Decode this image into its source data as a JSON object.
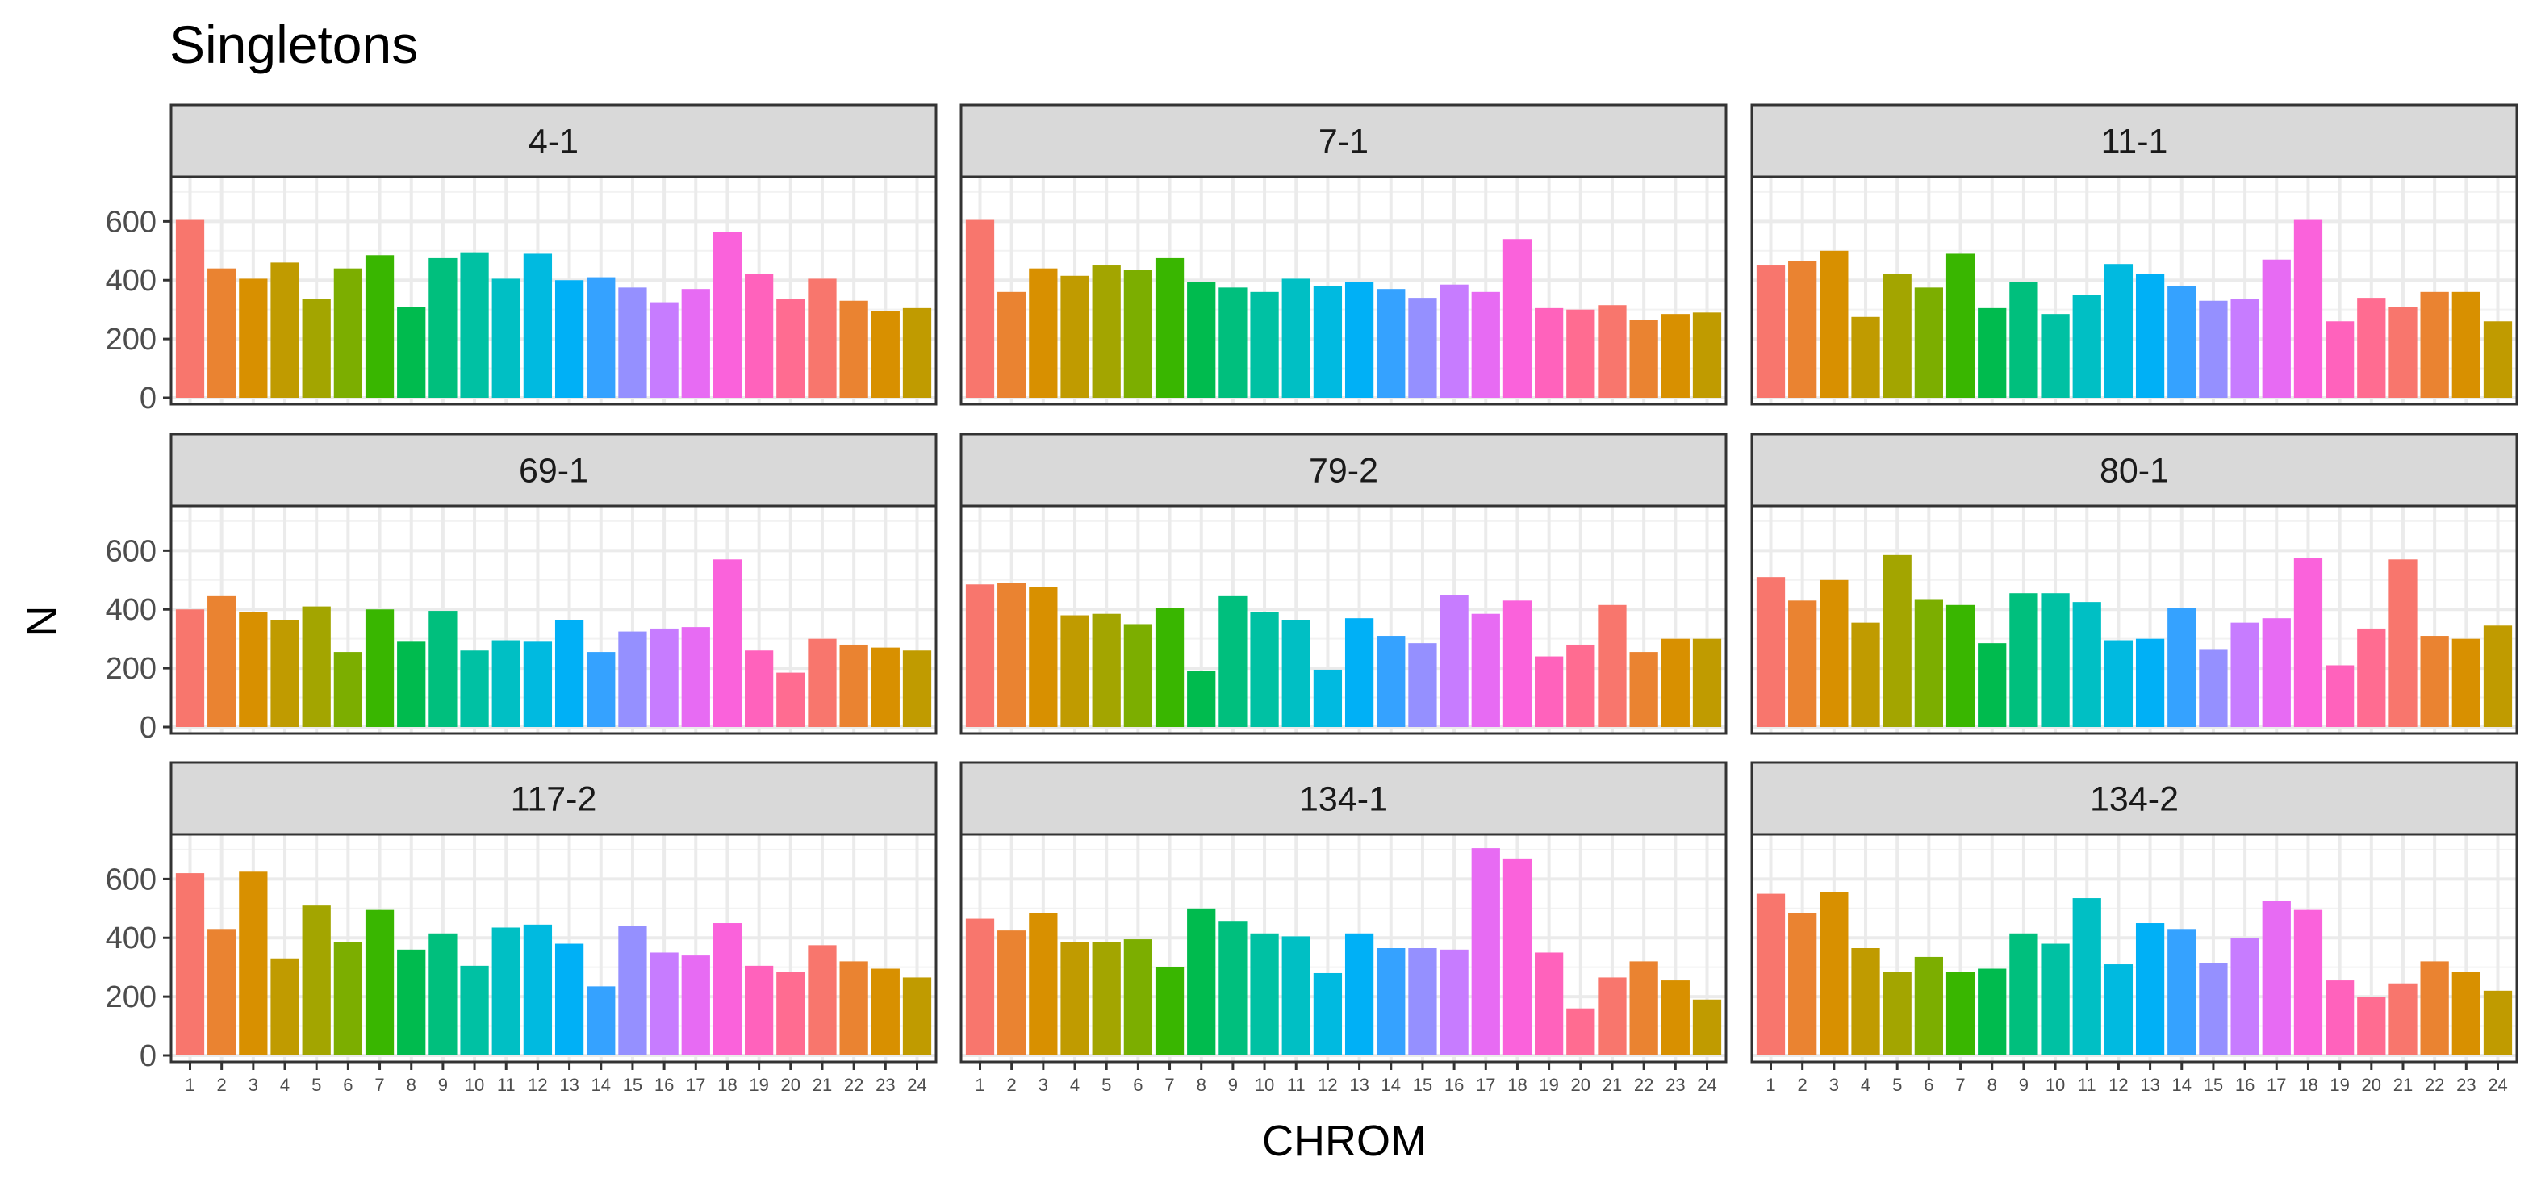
{
  "chart_data": {
    "type": "bar",
    "title": "Singletons",
    "xlabel": "CHROM",
    "ylabel": "N",
    "categories": [
      "1",
      "2",
      "3",
      "4",
      "5",
      "6",
      "7",
      "8",
      "9",
      "10",
      "11",
      "12",
      "13",
      "14",
      "15",
      "16",
      "17",
      "18",
      "19",
      "20",
      "21",
      "22",
      "23",
      "24"
    ],
    "ylim": [
      0,
      730
    ],
    "yticks": [
      0,
      200,
      400,
      600
    ],
    "grid": true,
    "legend": "none",
    "colors": [
      "#F8766D",
      "#EA8331",
      "#D89000",
      "#C09B00",
      "#A3A500",
      "#7CAE00",
      "#39B600",
      "#00BB4E",
      "#00BF7D",
      "#00C1A3",
      "#00BFC4",
      "#00BAE0",
      "#00B0F6",
      "#35A2FF",
      "#9590FF",
      "#C77CFF",
      "#E76BF3",
      "#FA62DB",
      "#FF62BC",
      "#FF6C91",
      "#F8766D",
      "#EA8331",
      "#D89000",
      "#C09B00"
    ],
    "facets": [
      {
        "label": "4-1",
        "values": [
          605,
          440,
          405,
          460,
          335,
          440,
          485,
          310,
          475,
          495,
          405,
          490,
          400,
          410,
          375,
          325,
          370,
          565,
          420,
          335,
          405,
          330,
          295,
          305
        ]
      },
      {
        "label": "7-1",
        "values": [
          605,
          360,
          440,
          415,
          450,
          435,
          475,
          395,
          375,
          360,
          405,
          380,
          395,
          370,
          340,
          385,
          360,
          540,
          305,
          300,
          315,
          265,
          285,
          290
        ]
      },
      {
        "label": "11-1",
        "values": [
          450,
          465,
          500,
          275,
          420,
          375,
          490,
          305,
          395,
          285,
          350,
          455,
          420,
          380,
          330,
          335,
          470,
          605,
          260,
          340,
          310,
          360,
          360,
          260
        ]
      },
      {
        "label": "69-1",
        "values": [
          400,
          445,
          390,
          365,
          410,
          255,
          400,
          290,
          395,
          260,
          295,
          290,
          365,
          255,
          325,
          335,
          340,
          570,
          260,
          185,
          300,
          280,
          270,
          260
        ]
      },
      {
        "label": "79-2",
        "values": [
          485,
          490,
          475,
          380,
          385,
          350,
          405,
          190,
          445,
          390,
          365,
          195,
          370,
          310,
          285,
          450,
          385,
          430,
          240,
          280,
          415,
          255,
          300,
          300
        ]
      },
      {
        "label": "80-1",
        "values": [
          510,
          430,
          500,
          355,
          585,
          435,
          415,
          285,
          455,
          455,
          425,
          295,
          300,
          405,
          265,
          355,
          370,
          575,
          210,
          335,
          570,
          310,
          300,
          345
        ]
      },
      {
        "label": "117-2",
        "values": [
          620,
          430,
          625,
          330,
          510,
          385,
          495,
          360,
          415,
          305,
          435,
          445,
          380,
          235,
          440,
          350,
          340,
          450,
          305,
          285,
          375,
          320,
          295,
          265
        ]
      },
      {
        "label": "134-1",
        "values": [
          465,
          425,
          485,
          385,
          385,
          395,
          300,
          500,
          455,
          415,
          405,
          280,
          415,
          365,
          365,
          360,
          705,
          670,
          350,
          160,
          265,
          320,
          255,
          190
        ]
      },
      {
        "label": "134-2",
        "values": [
          550,
          485,
          555,
          365,
          285,
          335,
          285,
          295,
          415,
          380,
          535,
          310,
          450,
          430,
          315,
          400,
          525,
          495,
          255,
          200,
          245,
          320,
          285,
          220
        ]
      }
    ]
  }
}
